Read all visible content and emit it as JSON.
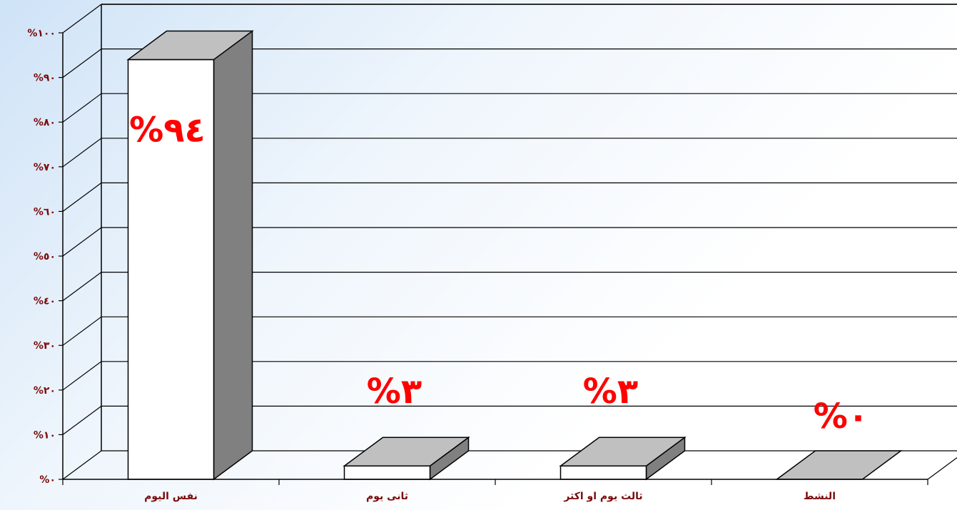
{
  "chart_data": {
    "type": "bar",
    "categories": [
      "نفس اليوم",
      "ثانى يوم",
      "ثالث يوم او اكثر",
      "النشط"
    ],
    "values": [
      94,
      3,
      3,
      0
    ],
    "data_labels": [
      "%٩٤",
      "%٣",
      "%٣",
      "%٠"
    ],
    "yticks": [
      0,
      10,
      20,
      30,
      40,
      50,
      60,
      70,
      80,
      90,
      100
    ],
    "ytick_labels": [
      "%٠",
      "%١٠",
      "%٢٠",
      "%٣٠",
      "%٤٠",
      "%٥٠",
      "%٦٠",
      "%٧٠",
      "%٨٠",
      "%٩٠",
      "%١٠٠"
    ],
    "ylim": [
      0,
      100
    ],
    "grid": true,
    "style": "3d-column",
    "colors": {
      "bar_front": "#ffffff",
      "bar_top": "#c0c0c0",
      "bar_side": "#808080",
      "tick_label": "#7a0a0a",
      "data_label": "#ff0000",
      "line": "#000000"
    }
  }
}
